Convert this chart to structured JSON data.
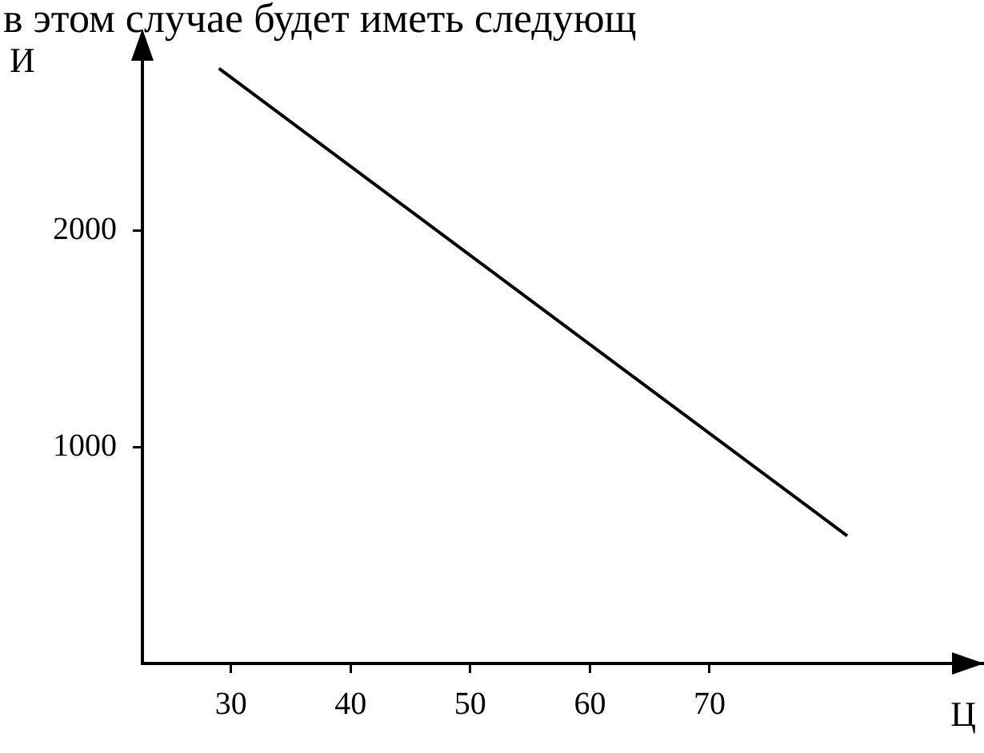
{
  "chart_data": {
    "type": "line",
    "title": "в этом случае будет иметь следующ",
    "xlabel": "Ц",
    "ylabel": "И",
    "x": [
      29,
      81.5
    ],
    "series": [
      {
        "color": "#000000",
        "values": [
          2750,
          590
        ]
      }
    ],
    "xlim": [
      22.6,
      92.8
    ],
    "xticks": [
      30,
      40,
      50,
      60,
      70
    ],
    "ylim": [
      0,
      2830
    ],
    "yticks": [
      1000,
      2000
    ],
    "grid": false,
    "legend": false,
    "marker": "none",
    "line_style": "solid"
  }
}
